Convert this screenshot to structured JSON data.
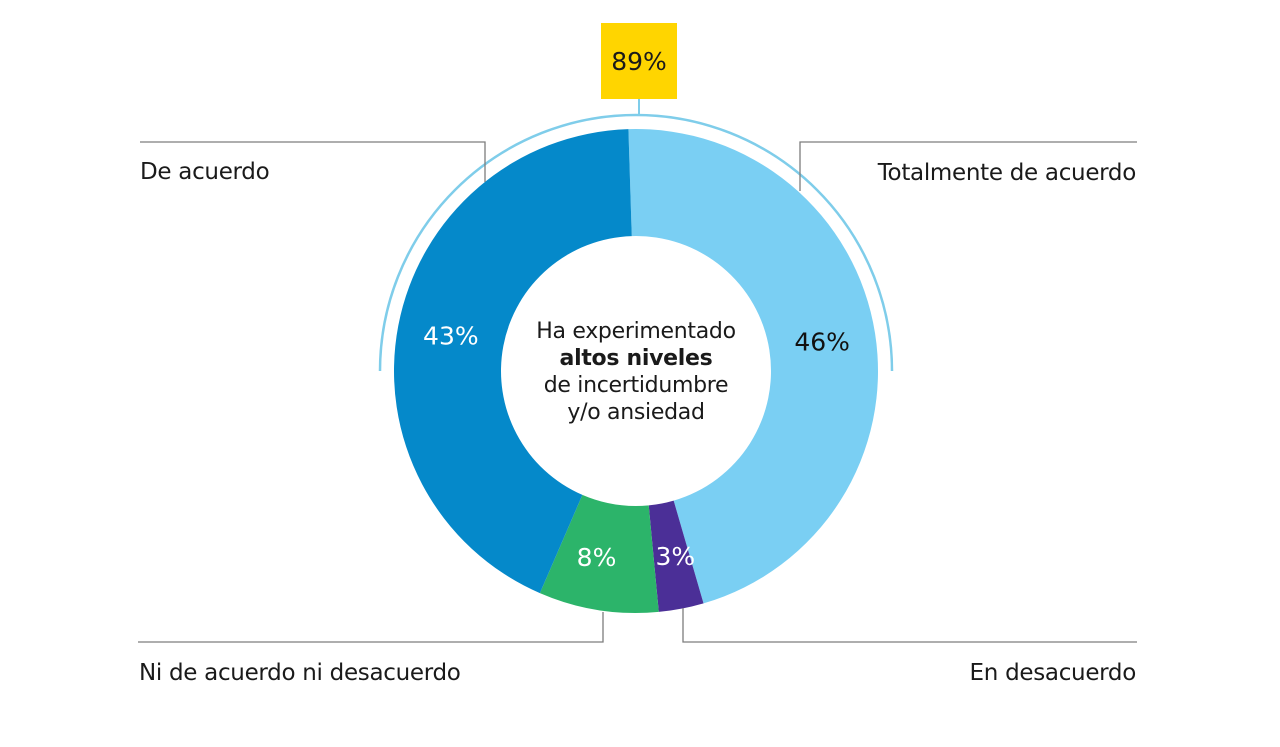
{
  "chart_data": {
    "type": "pie",
    "variant": "donut",
    "title": "",
    "center_label": {
      "line1": "Ha experimentado",
      "line2_bold": "altos niveles",
      "line3": "de incertidumbre",
      "line4": "y/o ansiedad"
    },
    "slices": [
      {
        "name": "Totalmente de acuerdo",
        "value": 46,
        "label": "46%",
        "color": "#7acff3",
        "label_color": "#111111"
      },
      {
        "name": "En desacuerdo",
        "value": 3,
        "label": "3%",
        "color": "#4b2f97",
        "label_color": "#ffffff"
      },
      {
        "name": "Ni de acuerdo ni desacuerdo",
        "value": 8,
        "label": "8%",
        "color": "#2cb46a",
        "label_color": "#ffffff"
      },
      {
        "name": "De acuerdo",
        "value": 43,
        "label": "43%",
        "color": "#0589ca",
        "label_color": "#ffffff"
      }
    ],
    "combined_total": {
      "label": "89%",
      "value": 89,
      "includes": [
        "De acuerdo",
        "Totalmente de acuerdo"
      ],
      "box_color": "#ffd500",
      "bracket_color": "#7fcdea"
    },
    "legend_placement": "callouts"
  }
}
